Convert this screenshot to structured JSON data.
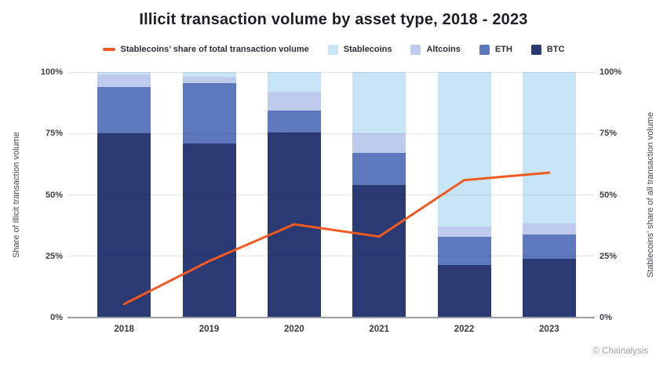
{
  "chart_data": {
    "type": "bar",
    "subtype": "stacked-percent-bars-with-line-overlay",
    "title": "Illicit transaction volume by asset type, 2018 - 2023",
    "categories": [
      "2018",
      "2019",
      "2020",
      "2021",
      "2022",
      "2023"
    ],
    "series": [
      {
        "name": "BTC",
        "kind": "bar",
        "color": "#2B3A72",
        "values": [
          75,
          71,
          75.5,
          54,
          21.5,
          24
        ]
      },
      {
        "name": "ETH",
        "kind": "bar",
        "color": "#5E78BD",
        "values": [
          19,
          24.5,
          9,
          13,
          11.5,
          10
        ]
      },
      {
        "name": "Altcoins",
        "kind": "bar",
        "color": "#BFCBEC",
        "values": [
          5,
          2.5,
          7.5,
          8,
          4,
          4.5
        ]
      },
      {
        "name": "Stablecoins",
        "kind": "bar",
        "color": "#C7E5F7",
        "values": [
          1,
          2,
          8,
          25,
          63,
          61.5
        ]
      },
      {
        "name": "Stablecoins’ share of total transaction volume",
        "kind": "line",
        "color": "#F05A22",
        "values": [
          5.5,
          23,
          38,
          33,
          56,
          59
        ]
      }
    ],
    "stack_order_bottom_to_top": [
      "BTC",
      "ETH",
      "Altcoins",
      "Stablecoins"
    ],
    "legend": [
      {
        "swatch": "line",
        "label": "Stablecoins’ share of total transaction volume",
        "color": "#F05A22"
      },
      {
        "swatch": "square",
        "label": "Stablecoins",
        "color": "#C7E5F7"
      },
      {
        "swatch": "square",
        "label": "Altcoins",
        "color": "#BFCBEC"
      },
      {
        "swatch": "square",
        "label": "ETH",
        "color": "#5E78BD"
      },
      {
        "swatch": "square",
        "label": "BTC",
        "color": "#2B3A72"
      }
    ],
    "y_left": {
      "label": "Share of illicit transaction volume",
      "ticks": [
        "0%",
        "25%",
        "50%",
        "75%",
        "100%"
      ],
      "min": 0,
      "max": 100
    },
    "y_right": {
      "label": "Stablecoins’ share of all transaction volume",
      "ticks": [
        "0%",
        "25%",
        "50%",
        "75%",
        "100%"
      ],
      "min": 0,
      "max": 100
    },
    "grid": true,
    "legend_position": "top"
  },
  "footer": {
    "credit": "© Chainalysis"
  }
}
